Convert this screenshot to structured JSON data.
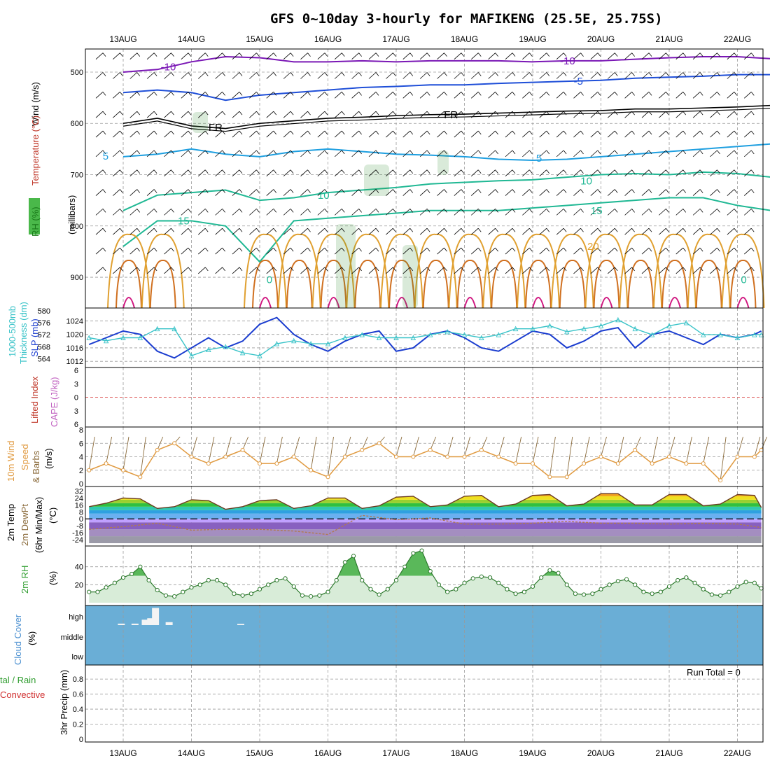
{
  "title": "GFS 0~10day 3-hourly for MAFIKENG (25.5E, 25.75S)",
  "dates": [
    "13AUG",
    "14AUG",
    "15AUG",
    "16AUG",
    "17AUG",
    "18AUG",
    "19AUG",
    "20AUG",
    "21AUG",
    "22AUG"
  ],
  "colors": {
    "frame": "#000000",
    "grid": "#9a9a9a",
    "freezing": "#000000",
    "cold": "#7a17b5",
    "blue": "#1f4fd8",
    "cyan": "#1e9fe0",
    "teal": "#20b894",
    "orange": "#e0a030",
    "dark_orange": "#d07020",
    "magenta": "#d01880",
    "slp": "#1a3ccf",
    "thickness": "#39c3c8",
    "wind10m": "#e09a40",
    "rh": "#3aa83a",
    "cloud_bg": "#6aaed6",
    "cloud_fill": "#f4f4f4"
  },
  "chart_data": [
    {
      "type": "contour",
      "panel": "upper-air",
      "ylabel_parts": [
        "RH (%)",
        "Temperature (°C)",
        "Wind (m/s)"
      ],
      "yaxis_label": "(millibars)",
      "ylim": [
        960,
        455
      ],
      "yticks": [
        500,
        600,
        700,
        800,
        900
      ],
      "contour_labels": {
        "cold_10": "-10",
        "blue_5": "-5",
        "freezing": "FR",
        "cyan_5": "5",
        "teal_10": "10",
        "teal_15": "15",
        "orange_20": "20",
        "grey_10": "10",
        "teal_0": "0"
      },
      "isotherms": [
        {
          "name": "-10",
          "x": [
            0,
            0.5,
            1,
            1.5,
            2,
            2.5,
            3,
            3.5,
            4,
            4.5,
            5,
            5.5,
            6,
            6.5,
            7,
            7.5,
            8,
            8.5,
            9,
            9.5,
            9.85
          ],
          "y": [
            500,
            495,
            480,
            470,
            472,
            480,
            480,
            478,
            480,
            478,
            478,
            478,
            480,
            478,
            478,
            475,
            472,
            470,
            470,
            474,
            480
          ]
        },
        {
          "name": "-5",
          "x": [
            0,
            0.5,
            1,
            1.5,
            2,
            2.5,
            3,
            3.5,
            4,
            4.5,
            5,
            5.5,
            6,
            6.5,
            7,
            7.5,
            8,
            8.5,
            9,
            9.5,
            9.85
          ],
          "y": [
            540,
            535,
            540,
            555,
            545,
            540,
            535,
            530,
            528,
            525,
            525,
            522,
            520,
            518,
            516,
            512,
            510,
            508,
            505,
            505,
            510
          ]
        },
        {
          "name": "FR",
          "x": [
            0,
            0.5,
            1,
            1.5,
            2,
            2.5,
            3,
            3.5,
            4,
            4.5,
            5,
            5.5,
            6,
            6.5,
            7,
            7.5,
            8,
            8.5,
            9,
            9.5,
            9.85
          ],
          "y": [
            600,
            590,
            605,
            610,
            600,
            595,
            590,
            588,
            585,
            583,
            582,
            580,
            578,
            576,
            575,
            572,
            572,
            570,
            568,
            565,
            585
          ]
        },
        {
          "name": "5",
          "x": [
            0,
            0.5,
            1,
            1.5,
            2,
            2.5,
            3,
            3.5,
            4,
            4.5,
            5,
            5.5,
            6,
            6.5,
            7,
            7.5,
            8,
            8.5,
            9,
            9.5,
            9.85
          ],
          "y": [
            665,
            660,
            650,
            660,
            665,
            655,
            650,
            655,
            660,
            662,
            665,
            670,
            672,
            670,
            665,
            660,
            655,
            650,
            645,
            640,
            655
          ]
        },
        {
          "name": "10",
          "x": [
            0,
            0.5,
            1,
            1.5,
            2,
            2.5,
            3,
            3.5,
            4,
            4.5,
            5,
            5.5,
            6,
            6.5,
            7,
            7.5,
            8,
            8.5,
            9,
            9.5,
            9.85
          ],
          "y": [
            770,
            740,
            735,
            730,
            750,
            745,
            735,
            730,
            725,
            718,
            715,
            712,
            710,
            705,
            700,
            698,
            700,
            695,
            698,
            705,
            710
          ]
        },
        {
          "name": "15",
          "x": [
            0,
            0.5,
            1,
            1.5,
            2,
            2.5,
            3,
            3.5,
            4,
            4.5,
            5,
            5.5,
            6,
            6.5,
            7,
            7.5,
            8,
            8.5,
            9,
            9.5,
            9.85
          ],
          "y": [
            840,
            790,
            790,
            800,
            870,
            790,
            785,
            780,
            775,
            770,
            770,
            770,
            765,
            760,
            755,
            750,
            745,
            745,
            760,
            770,
            770
          ]
        }
      ]
    },
    {
      "type": "line",
      "panel": "slp-thickness",
      "ylabel": "SLP (mb)",
      "ylabel2": "1000-500mb Thickness (dm)",
      "yticks": [
        1012,
        1016,
        1020,
        1024
      ],
      "yticks2": [
        564,
        568,
        572,
        576,
        580
      ],
      "ylim": [
        1011,
        1027
      ],
      "ylim2": [
        562,
        580
      ],
      "series": [
        {
          "name": "SLP (mb)",
          "x": [
            0,
            0.25,
            0.5,
            0.75,
            1,
            1.25,
            1.5,
            1.75,
            2,
            2.25,
            2.5,
            2.75,
            3,
            3.25,
            3.5,
            3.75,
            4,
            4.25,
            4.5,
            4.75,
            5,
            5.25,
            5.5,
            5.75,
            6,
            6.25,
            6.5,
            6.75,
            7,
            7.25,
            7.5,
            7.75,
            8,
            8.25,
            8.5,
            8.75,
            9,
            9.25,
            9.5,
            9.75,
            9.85
          ],
          "values": [
            1017,
            1019,
            1021,
            1020,
            1015,
            1013,
            1016,
            1019,
            1016,
            1018,
            1023,
            1025,
            1020,
            1017,
            1015,
            1018,
            1020,
            1021,
            1015,
            1016,
            1020,
            1021,
            1019,
            1016,
            1015,
            1018,
            1021,
            1020,
            1016,
            1018,
            1021,
            1022,
            1016,
            1020,
            1021,
            1019,
            1017,
            1020,
            1019,
            1020,
            1021
          ]
        },
        {
          "name": "1000-500mb Thickness (dm)",
          "x": [
            0,
            0.25,
            0.5,
            0.75,
            1,
            1.25,
            1.5,
            1.75,
            2,
            2.25,
            2.5,
            2.75,
            3,
            3.25,
            3.5,
            3.75,
            4,
            4.25,
            4.5,
            4.75,
            5,
            5.25,
            5.5,
            5.75,
            6,
            6.25,
            6.5,
            6.75,
            7,
            7.25,
            7.5,
            7.75,
            8,
            8.25,
            8.5,
            8.75,
            9,
            9.25,
            9.5,
            9.75,
            9.85
          ],
          "values": [
            571,
            570,
            571,
            571,
            574,
            574,
            565,
            567,
            568,
            566,
            565,
            569,
            570,
            569,
            569,
            571,
            572,
            571,
            571,
            571,
            572,
            573,
            572,
            571,
            572,
            574,
            574,
            575,
            573,
            574,
            575,
            577,
            574,
            572,
            575,
            576,
            572,
            572,
            571,
            572,
            572
          ]
        }
      ]
    },
    {
      "type": "line",
      "panel": "cape-li",
      "ylabel": "Lifted Index",
      "ylabel2": "CAPE (J/kg)",
      "yticks": [
        "6",
        "3",
        "0",
        "3",
        "6"
      ],
      "ylim": [
        -6,
        6
      ],
      "series": [
        {
          "name": "Lifted Index",
          "values": []
        }
      ]
    },
    {
      "type": "line",
      "panel": "wind10m",
      "ylabel": "10m Wind",
      "ylabel2": "Speed & Barbs (m/s)",
      "yticks": [
        0,
        2,
        4,
        6,
        8
      ],
      "ylim": [
        0,
        8
      ],
      "series": [
        {
          "name": "10m Wind Speed",
          "x": [
            0,
            0.25,
            0.5,
            0.75,
            1,
            1.25,
            1.5,
            1.75,
            2,
            2.25,
            2.5,
            2.75,
            3,
            3.25,
            3.5,
            3.75,
            4,
            4.25,
            4.5,
            4.75,
            5,
            5.25,
            5.5,
            5.75,
            6,
            6.25,
            6.5,
            6.75,
            7,
            7.25,
            7.5,
            7.75,
            8,
            8.25,
            8.5,
            8.75,
            9,
            9.25,
            9.5,
            9.75,
            9.85
          ],
          "values": [
            2,
            3,
            2,
            1,
            5,
            6,
            4,
            3,
            4,
            5,
            3,
            3,
            4,
            2,
            1,
            4,
            5,
            6,
            4,
            4,
            5,
            4,
            4,
            5,
            4,
            3,
            3,
            1,
            1,
            3,
            4,
            3,
            5,
            3,
            4,
            3,
            3,
            0.5,
            4,
            4,
            5
          ]
        }
      ]
    },
    {
      "type": "area",
      "panel": "temp2m",
      "ylabel": "2m Temp",
      "ylabel2": "2m DewPt",
      "ylabel3": "(6hr Min/Max) (°C)",
      "yticks": [
        32,
        24,
        16,
        8,
        0,
        -8,
        -16,
        -24
      ],
      "ylim": [
        -28,
        34
      ],
      "series": [
        {
          "name": "2m Temp",
          "x": [
            0,
            0.25,
            0.5,
            0.75,
            1,
            1.25,
            1.5,
            1.75,
            2,
            2.25,
            2.5,
            2.75,
            3,
            3.25,
            3.5,
            3.75,
            4,
            4.25,
            4.5,
            4.75,
            5,
            5.25,
            5.5,
            5.75,
            6,
            6.25,
            6.5,
            6.75,
            7,
            7.25,
            7.5,
            7.75,
            8,
            8.25,
            8.5,
            8.75,
            9,
            9.25,
            9.5,
            9.75,
            9.85
          ],
          "values": [
            14,
            18,
            24,
            23,
            12,
            14,
            22,
            21,
            11,
            14,
            21,
            22,
            12,
            15,
            24,
            24,
            12,
            15,
            25,
            26,
            14,
            16,
            26,
            27,
            14,
            17,
            27,
            28,
            15,
            17,
            29,
            29,
            16,
            16,
            28,
            28,
            15,
            17,
            28,
            27,
            13
          ]
        },
        {
          "name": "2m DewPt",
          "x": [
            0,
            0.5,
            1,
            1.5,
            2,
            2.5,
            3,
            3.5,
            4,
            4.5,
            5,
            5.5,
            6,
            6.5,
            7,
            7.5,
            8,
            8.5,
            9,
            9.5,
            9.85
          ],
          "values": [
            -12,
            -9,
            -5,
            -13,
            -12,
            -12,
            -14,
            -18,
            4,
            -1,
            1,
            -6,
            -6,
            -5,
            -3,
            -5,
            -5,
            -6,
            -5,
            -6,
            -10
          ]
        }
      ]
    },
    {
      "type": "area",
      "panel": "rh2m",
      "ylabel": "2m RH",
      "ylabel2": "(%)",
      "yticks": [
        20,
        40
      ],
      "ylim": [
        0,
        60
      ],
      "series": [
        {
          "name": "2m RH",
          "x": [
            0,
            0.125,
            0.25,
            0.375,
            0.5,
            0.625,
            0.75,
            0.875,
            1,
            1.125,
            1.25,
            1.375,
            1.5,
            1.625,
            1.75,
            1.875,
            2,
            2.125,
            2.25,
            2.375,
            2.5,
            2.625,
            2.75,
            2.875,
            3,
            3.125,
            3.25,
            3.375,
            3.5,
            3.625,
            3.75,
            3.875,
            4,
            4.125,
            4.25,
            4.375,
            4.5,
            4.625,
            4.75,
            4.875,
            5,
            5.125,
            5.25,
            5.375,
            5.5,
            5.625,
            5.75,
            5.875,
            6,
            6.125,
            6.25,
            6.375,
            6.5,
            6.625,
            6.75,
            6.875,
            7,
            7.125,
            7.25,
            7.375,
            7.5,
            7.625,
            7.75,
            7.875,
            8,
            8.125,
            8.25,
            8.375,
            8.5,
            8.625,
            8.75,
            8.875,
            9,
            9.125,
            9.25,
            9.375,
            9.5,
            9.625,
            9.75,
            9.85
          ],
          "values": [
            12,
            12,
            17,
            22,
            28,
            32,
            40,
            25,
            14,
            8,
            7,
            12,
            17,
            20,
            25,
            25,
            20,
            10,
            8,
            10,
            15,
            20,
            25,
            27,
            18,
            8,
            7,
            8,
            12,
            25,
            45,
            52,
            25,
            15,
            9,
            15,
            25,
            40,
            55,
            58,
            35,
            20,
            12,
            15,
            22,
            27,
            29,
            28,
            22,
            15,
            10,
            12,
            18,
            28,
            36,
            33,
            20,
            10,
            9,
            10,
            15,
            20,
            24,
            26,
            20,
            12,
            10,
            12,
            18,
            25,
            28,
            22,
            15,
            9,
            8,
            12,
            18,
            23,
            22,
            16
          ]
        }
      ]
    },
    {
      "type": "bar",
      "panel": "cloud",
      "ylabel": "Cloud Cover",
      "ylabel2": "(%)",
      "yticks": [
        "high",
        "middle",
        "low"
      ],
      "series": [
        {
          "name": "high",
          "x": [
            0.35,
            0.55,
            0.7,
            0.78,
            0.85,
            1.05,
            2.1
          ],
          "values": [
            6,
            6,
            22,
            28,
            70,
            12,
            5
          ]
        }
      ]
    },
    {
      "type": "bar",
      "panel": "precip",
      "ylabel": "3hr Precip (mm)",
      "ylabel_left": "Total / Rain",
      "ylabel_left2": "Convective",
      "run_total": "Run Total =  0",
      "yticks": [
        0,
        0.2,
        0.4,
        0.6,
        0.8
      ],
      "ylim": [
        0,
        0.95
      ],
      "series": [
        {
          "name": "Total / Rain",
          "values": []
        }
      ]
    }
  ],
  "labels": {
    "wind": "Wind (m/s)",
    "temperature": "Temperature (°C)",
    "rh_upper": "RH (%)",
    "millibars": "(millibars)",
    "slp": "SLP (mb)",
    "thickness": "1000-500mb",
    "thickness2": "Thickness (dm)",
    "li": "Lifted Index",
    "cape": "CAPE (J/kg)",
    "wind10m": "10m Wind",
    "speed": "Speed",
    "barbs": "& Barbs",
    "ms": "(m/s)",
    "temp2m": "2m Temp",
    "dewpt": "2m DewPt",
    "minmax": "(6hr Min/Max)",
    "degc": "(°C)",
    "rh2m": "2m RH",
    "pct": "(%)",
    "cloud": "Cloud Cover",
    "cloudpct": "(%)",
    "precip": "3hr Precip (mm)",
    "total_rain": "tal / Rain",
    "convective": "Convective",
    "run_total": "Run Total =  0"
  }
}
